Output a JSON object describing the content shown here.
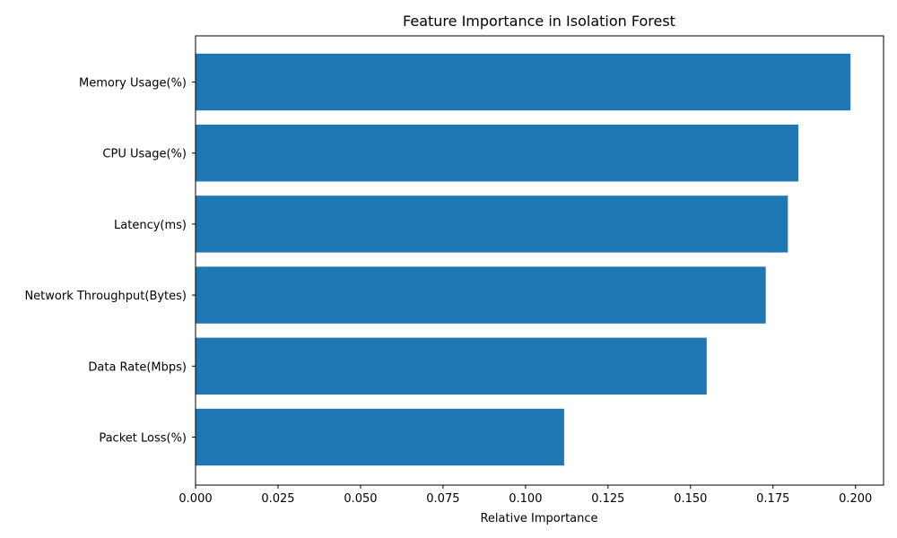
{
  "chart_data": {
    "type": "bar",
    "orientation": "horizontal",
    "title": "Feature Importance in Isolation Forest",
    "xlabel": "Relative Importance",
    "ylabel": "",
    "categories": [
      "Memory Usage(%)",
      "CPU Usage(%)",
      "Latency(ms)",
      "Network Throughput(Bytes)",
      "Data Rate(Mbps)",
      "Packet Loss(%)"
    ],
    "values": [
      0.1985,
      0.1827,
      0.1795,
      0.1728,
      0.1549,
      0.1117
    ],
    "xlim": [
      0.0,
      0.2085
    ],
    "xticks": [
      "0.000",
      "0.025",
      "0.050",
      "0.075",
      "0.100",
      "0.125",
      "0.150",
      "0.175",
      "0.200"
    ],
    "xtick_values": [
      0.0,
      0.025,
      0.05,
      0.075,
      0.1,
      0.125,
      0.15,
      0.175,
      0.2
    ],
    "grid": false,
    "legend": "none",
    "bar_color": "#1f77b4"
  }
}
